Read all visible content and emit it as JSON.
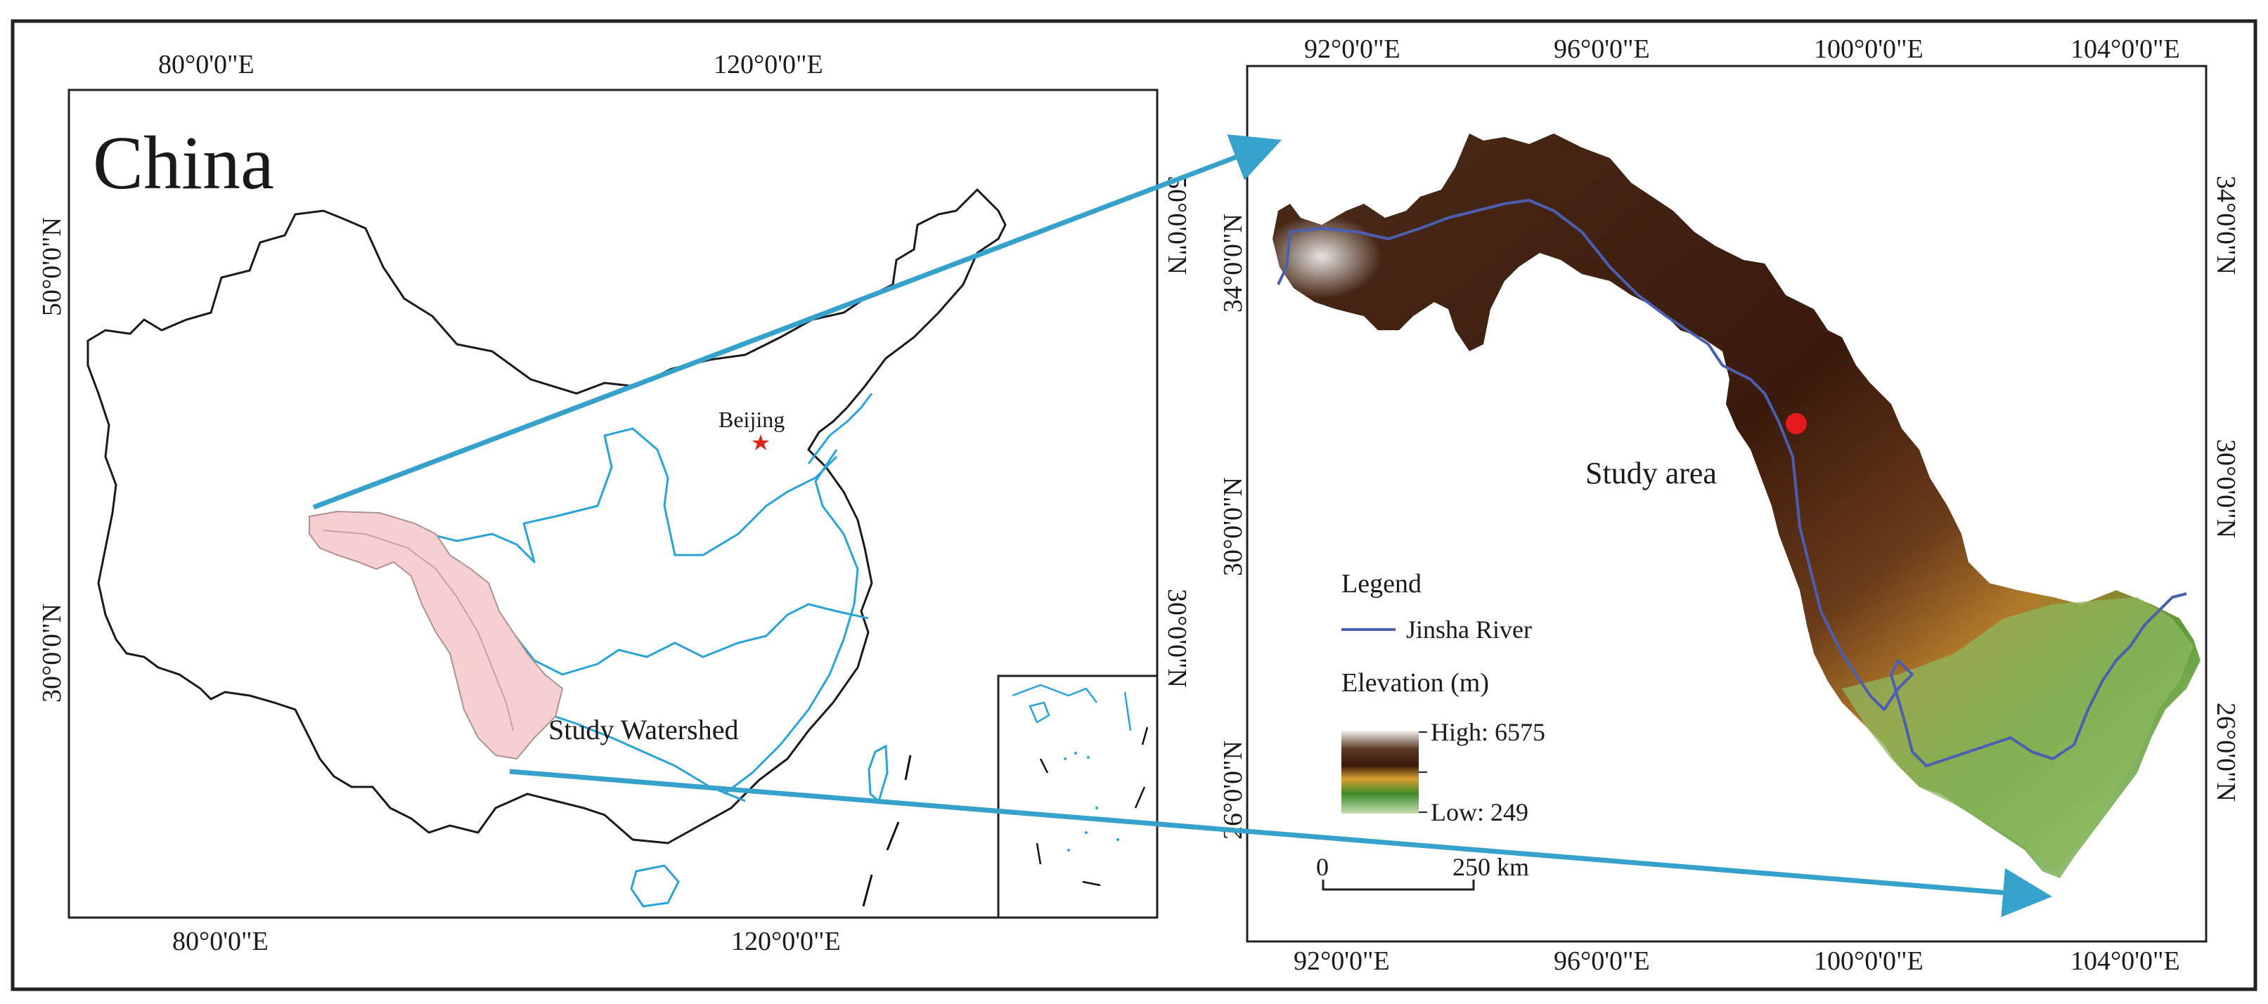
{
  "left_map": {
    "title": "China",
    "top_ticks": [
      "80°0'0\"E",
      "120°0'0\"E"
    ],
    "bottom_ticks": [
      "80°0'0\"E",
      "120°0'0\"E"
    ],
    "left_ticks": [
      "50°0'0\"N",
      "30°0'0\"N"
    ],
    "right_ticks": [
      "50°0'0\"N",
      "30°0'0\"N"
    ],
    "capital_label": "Beijing",
    "watershed_label": "Study Watershed",
    "colors": {
      "watershed_fill": "#f6cfd0",
      "rivers": "#2aa3d8",
      "capital_star": "#e0221a"
    }
  },
  "right_map": {
    "top_ticks": [
      "92°0'0\"E",
      "96°0'0\"E",
      "100°0'0\"E",
      "104°0'0\"E"
    ],
    "bottom_ticks": [
      "92°0'0\"E",
      "96°0'0\"E",
      "100°0'0\"E",
      "104°0'0\"E"
    ],
    "left_ticks": [
      "34°0'0\"N",
      "30°0'0\"N",
      "26°0'0\"N"
    ],
    "right_ticks": [
      "34°0'0\"N",
      "30°0'0\"N",
      "26°0'0\"N"
    ],
    "area_label": "Study area",
    "colors": {
      "river": "#4a5fb0",
      "study_point": "#e5191e"
    }
  },
  "legend": {
    "title": "Legend",
    "river_label": "Jinsha River",
    "elevation_title": "Elevation (m)",
    "high_label": "High: 6575",
    "low_label": "Low: 249",
    "ramp_colors": [
      "#f4f1ec",
      "#5c3a26",
      "#3a1808",
      "#d8a030",
      "#3e8a2a",
      "#c6ddb2"
    ]
  },
  "scale_bar": {
    "start_label": "0",
    "end_label": "250 km"
  },
  "connector_color": "#36a2cc"
}
